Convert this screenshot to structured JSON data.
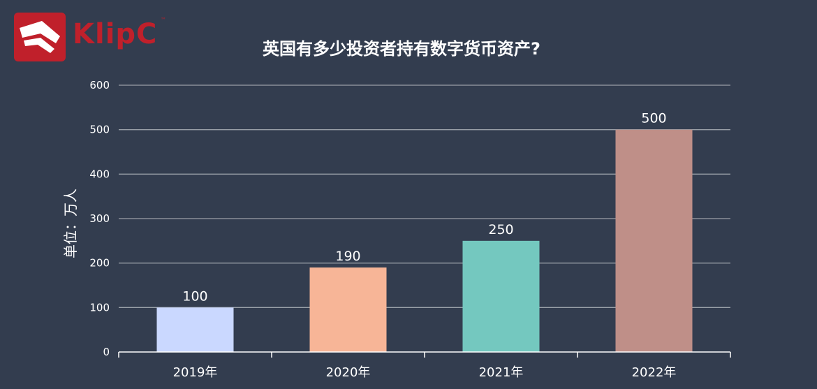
{
  "logo": {
    "text": "KlipC",
    "tm": "™"
  },
  "colors": {
    "background": "#333d4f",
    "logo": "#c0202b",
    "gridline": "#9aa0a8",
    "bars": [
      "#cad8ff",
      "#f7b597",
      "#74c8bf",
      "#bf8f88"
    ]
  },
  "chart_data": {
    "type": "bar",
    "title": "英国有多少投资者持有数字货币资产?",
    "ylabel": "单位：万人",
    "xlabel": "",
    "categories": [
      "2019年",
      "2020年",
      "2021年",
      "2022年"
    ],
    "values": [
      100,
      190,
      250,
      500
    ],
    "ylim": [
      0,
      600
    ],
    "yticks": [
      0,
      100,
      200,
      300,
      400,
      500,
      600
    ],
    "grid": true,
    "legend": "none"
  }
}
